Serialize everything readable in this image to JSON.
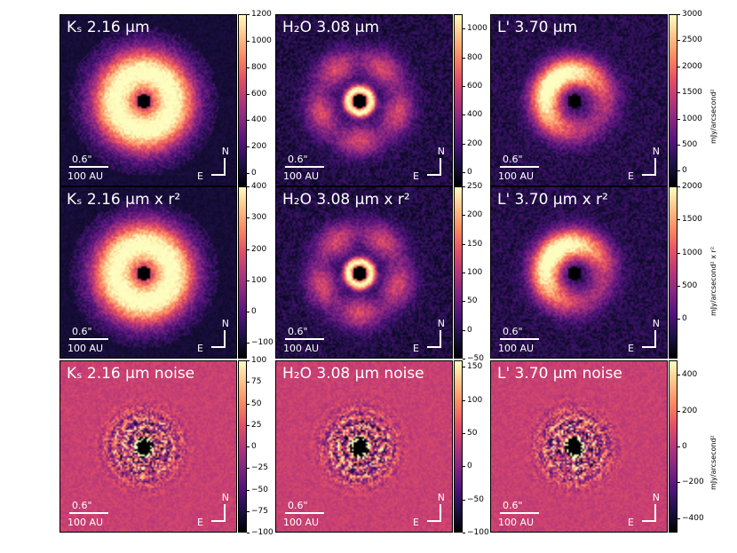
{
  "panels": [
    {
      "title": "Kₛ 2.16 µm",
      "cblabel": "mJy/arcsecond²",
      "ticks": [
        "1200",
        "1000",
        "800",
        "600",
        "400",
        "200",
        "0"
      ],
      "vmin": -100,
      "vmax": 1200,
      "type": "disk",
      "cmap": "magma"
    },
    {
      "title": "H₂O 3.08 µm",
      "cblabel": "mJy/arcsecond²",
      "ticks": [
        "1000",
        "800",
        "600",
        "400",
        "200",
        "0"
      ],
      "vmin": -100,
      "vmax": 1100,
      "type": "ring",
      "cmap": "magma"
    },
    {
      "title": "L' 3.70 µm",
      "cblabel": "mJy/arcsecond²",
      "ticks": [
        "3000",
        "2500",
        "2000",
        "1500",
        "1000",
        "500",
        "0"
      ],
      "vmin": -300,
      "vmax": 3000,
      "type": "crescent",
      "cmap": "magma"
    },
    {
      "title": "Kₛ 2.16 µm x r²",
      "cblabel": "mJy/arcsecond² x r²",
      "ticks": [
        "400",
        "300",
        "200",
        "100",
        "0",
        "−100"
      ],
      "vmin": -150,
      "vmax": 400,
      "type": "disk",
      "cmap": "magma"
    },
    {
      "title": "H₂O 3.08 µm x r²",
      "cblabel": "mJy/arcsecond² x r²",
      "ticks": [
        "250",
        "200",
        "150",
        "100",
        "50",
        "0",
        "−50"
      ],
      "vmin": -50,
      "vmax": 250,
      "type": "ring",
      "cmap": "magma"
    },
    {
      "title": "L' 3.70 µm x r²",
      "cblabel": "mJy/arcsecond² x r²",
      "ticks": [
        "2000",
        "1500",
        "1000",
        "500",
        "0"
      ],
      "vmin": -600,
      "vmax": 2000,
      "type": "crescent",
      "cmap": "magma"
    },
    {
      "title": "Kₛ 2.16 µm noise",
      "cblabel": "mJy/arcsecond²",
      "ticks": [
        "100",
        "75",
        "50",
        "25",
        "0",
        "−25",
        "−50",
        "−75",
        "−100"
      ],
      "vmin": -100,
      "vmax": 100,
      "type": "noise",
      "cmap": "magma"
    },
    {
      "title": "H₂O 3.08 µm noise",
      "cblabel": "mJy/arcsecond²",
      "ticks": [
        "150",
        "100",
        "50",
        "0",
        "−50",
        "−100"
      ],
      "vmin": -100,
      "vmax": 160,
      "type": "noise",
      "cmap": "magma"
    },
    {
      "title": "L' 3.70 µm noise",
      "cblabel": "mJy/arcsecond²",
      "ticks": [
        "400",
        "200",
        "0",
        "−200",
        "−400"
      ],
      "vmin": -480,
      "vmax": 480,
      "type": "noise",
      "cmap": "magma"
    }
  ],
  "scale": {
    "angular": "0.6\"",
    "physical": "100 AU"
  },
  "compass": {
    "north": "N",
    "east": "E"
  },
  "colors": {
    "magma": [
      "#000004",
      "#1c1044",
      "#4f127b",
      "#812581",
      "#b5367a",
      "#e55064",
      "#fb8761",
      "#fec287",
      "#fcfdbf"
    ]
  }
}
